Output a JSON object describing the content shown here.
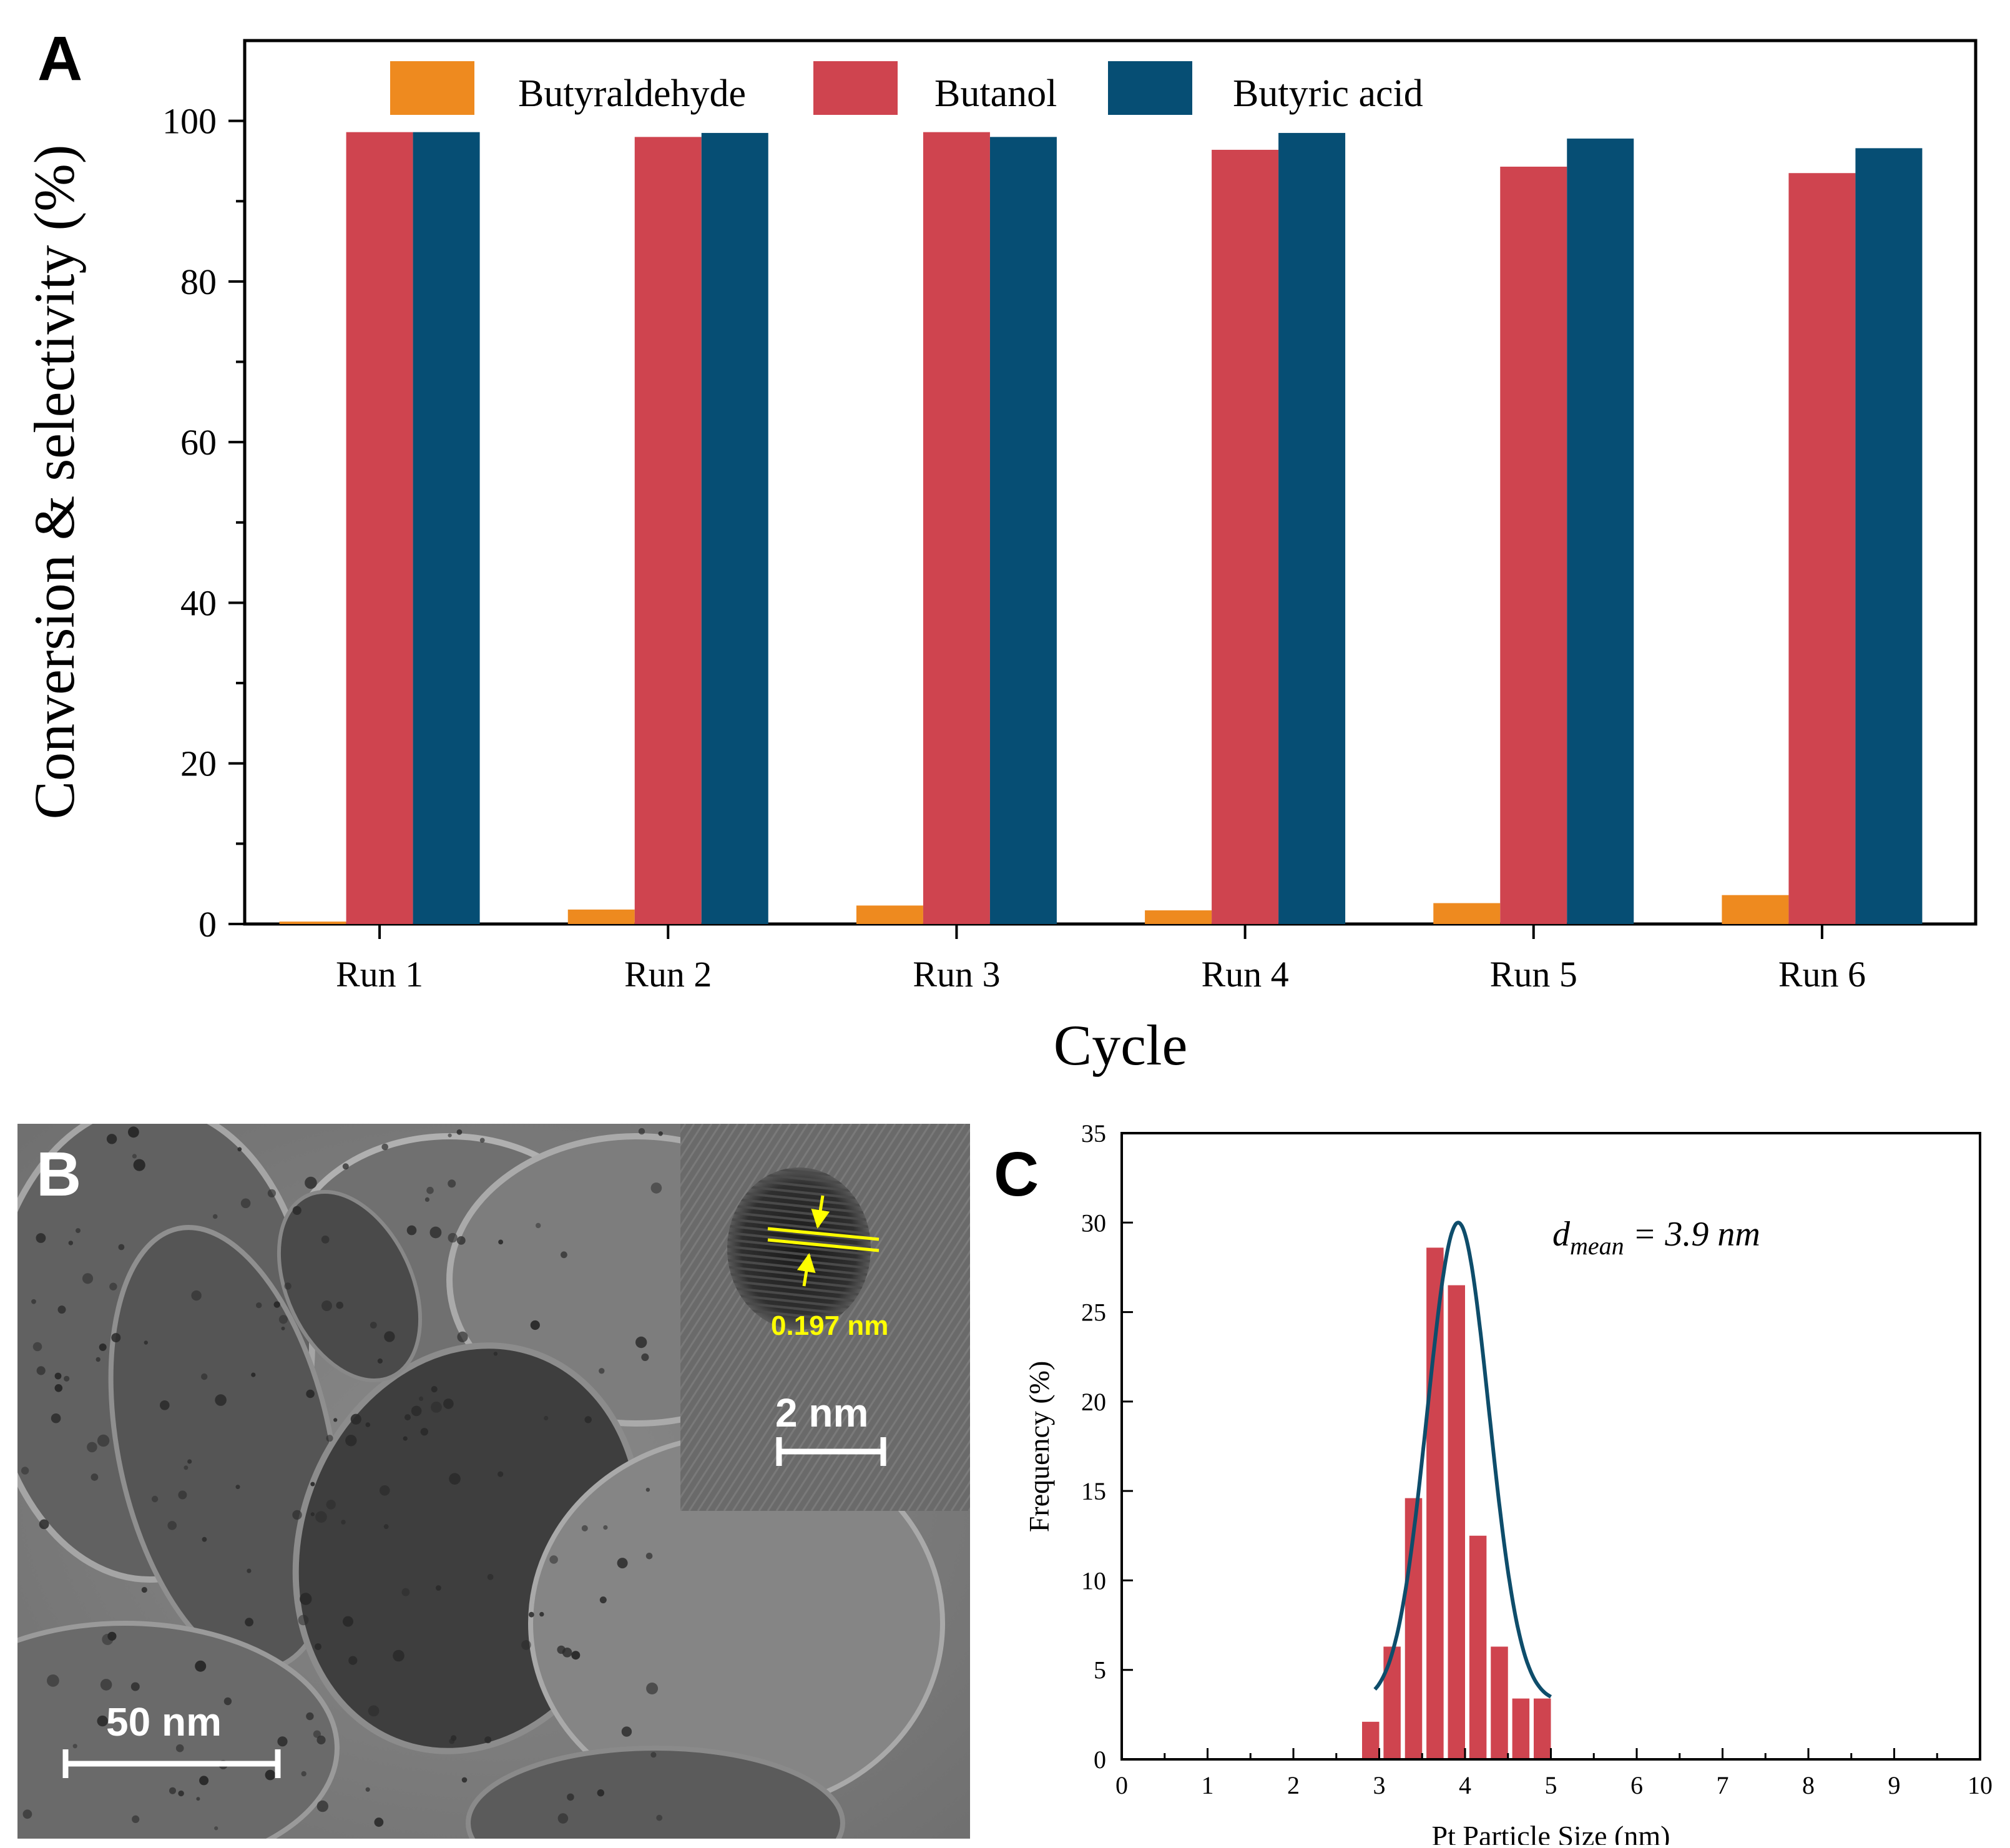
{
  "panels": {
    "a_label": "A",
    "b_label": "B",
    "c_label": "C"
  },
  "tem": {
    "scale_main": "50 nm",
    "scale_inset": "2 nm",
    "lattice_spacing": "0.197 nm"
  },
  "chart_data": [
    {
      "type": "bar",
      "xlabel": "Cycle",
      "ylabel": "Conversion & selectivity (%)",
      "ylim": [
        0,
        110
      ],
      "yticks": [
        0,
        20,
        40,
        60,
        80,
        100
      ],
      "categories": [
        "Run 1",
        "Run 2",
        "Run 3",
        "Run 4",
        "Run 5",
        "Run 6"
      ],
      "legend_position": "top",
      "series": [
        {
          "name": "Butyraldehyde",
          "color": "#ee8a1f",
          "values": [
            0.3,
            1.8,
            2.3,
            1.7,
            2.6,
            3.6
          ]
        },
        {
          "name": "Butanol",
          "color": "#cf444f",
          "values": [
            98.6,
            98.0,
            98.6,
            96.4,
            94.3,
            93.5
          ]
        },
        {
          "name": "Butyric acid",
          "color": "#064e74",
          "values": [
            98.6,
            98.5,
            98.0,
            98.5,
            97.8,
            96.6
          ]
        }
      ],
      "grid": false
    },
    {
      "type": "bar",
      "xlabel": "Pt Particle Size (nm)",
      "ylabel": "Frequency (%)",
      "xlim": [
        0,
        10
      ],
      "ylim": [
        0,
        35
      ],
      "xticks": [
        0,
        1,
        2,
        3,
        4,
        5,
        6,
        7,
        8,
        9,
        10
      ],
      "yticks": [
        0,
        5,
        10,
        15,
        20,
        25,
        30,
        35
      ],
      "annotation": {
        "d": "d",
        "sub": "mean",
        "rest": " = 3.9 nm"
      },
      "histogram": {
        "color": "#cf444f",
        "x": [
          2.9,
          3.15,
          3.4,
          3.65,
          3.9,
          4.15,
          4.4,
          4.65,
          4.9
        ],
        "values": [
          2.1,
          6.3,
          14.6,
          28.6,
          26.5,
          12.5,
          6.3,
          3.4,
          3.4
        ]
      },
      "fit": {
        "color": "#0e4d6b",
        "mean": 3.92,
        "sigma": 0.36,
        "peak": 30,
        "baseline": 3.2,
        "range": [
          2.95,
          5.0
        ]
      },
      "grid": false
    }
  ]
}
